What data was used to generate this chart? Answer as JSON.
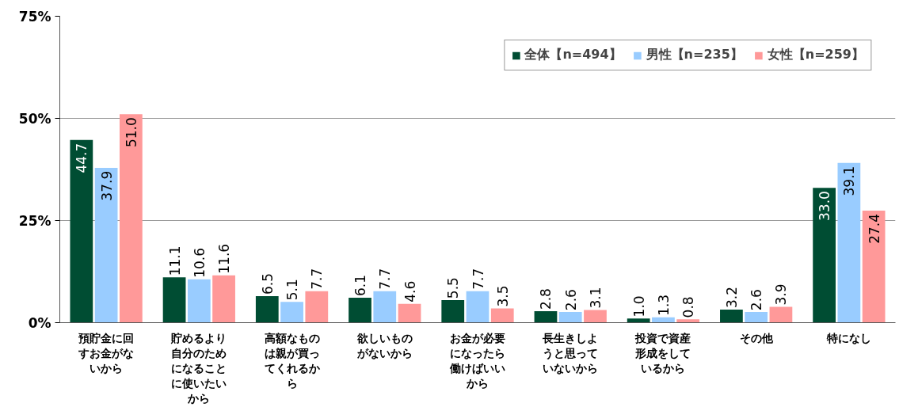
{
  "chart_data": {
    "type": "bar",
    "categories": [
      "預貯金に回すお金がないから",
      "貯めるより自分のためになることに使いたいから",
      "高額なものは親が買ってくれるから",
      "欲しいものがないから",
      "お金が必要になったら働けばいいから",
      "長生きしようと思っていないから",
      "投資で資産形成をしているから",
      "その他",
      "特になし"
    ],
    "series": [
      {
        "name": "全体【n=494】",
        "color": "#004d33",
        "values": [
          44.7,
          11.1,
          6.5,
          6.1,
          5.5,
          2.8,
          1.0,
          3.2,
          33.0
        ],
        "value_labels": [
          "44.7",
          "11.1",
          "6.5",
          "6.1",
          "5.5",
          "2.8",
          "1.0",
          "3.2",
          "33.0"
        ]
      },
      {
        "name": "男性【n=235】",
        "color": "#99ccff",
        "values": [
          37.9,
          10.6,
          5.1,
          7.7,
          7.7,
          2.6,
          1.3,
          2.6,
          39.1
        ],
        "value_labels": [
          "37.9",
          "10.6",
          "5.1",
          "7.7",
          "7.7",
          "2.6",
          "1.3",
          "2.6",
          "39.1"
        ]
      },
      {
        "name": "女性【n=259】",
        "color": "#ff9999",
        "values": [
          51.0,
          11.6,
          7.7,
          4.6,
          3.5,
          3.1,
          0.8,
          3.9,
          27.4
        ],
        "value_labels": [
          "51.0",
          "11.6",
          "7.7",
          "4.6",
          "3.5",
          "3.1",
          "0.8",
          "3.9",
          "27.4"
        ]
      }
    ],
    "ylim": [
      0,
      75
    ],
    "yticks": [
      {
        "value": 0,
        "label": "0%"
      },
      {
        "value": 25,
        "label": "25%"
      },
      {
        "value": 50,
        "label": "50%"
      },
      {
        "value": 75,
        "label": "75%"
      }
    ],
    "grid": "y",
    "legend": "top right"
  }
}
